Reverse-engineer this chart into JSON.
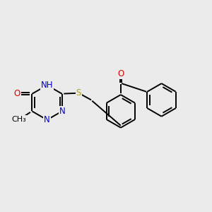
{
  "background_color": "#ebebeb",
  "bond_color": "#000000",
  "N_color": "#0000cc",
  "O_color": "#dd0000",
  "S_color": "#b8a000",
  "line_width": 1.4,
  "font_size": 8.5,
  "fig_width": 3.0,
  "fig_height": 3.0,
  "dpi": 100,
  "xlim": [
    0,
    12
  ],
  "ylim": [
    0,
    12
  ]
}
